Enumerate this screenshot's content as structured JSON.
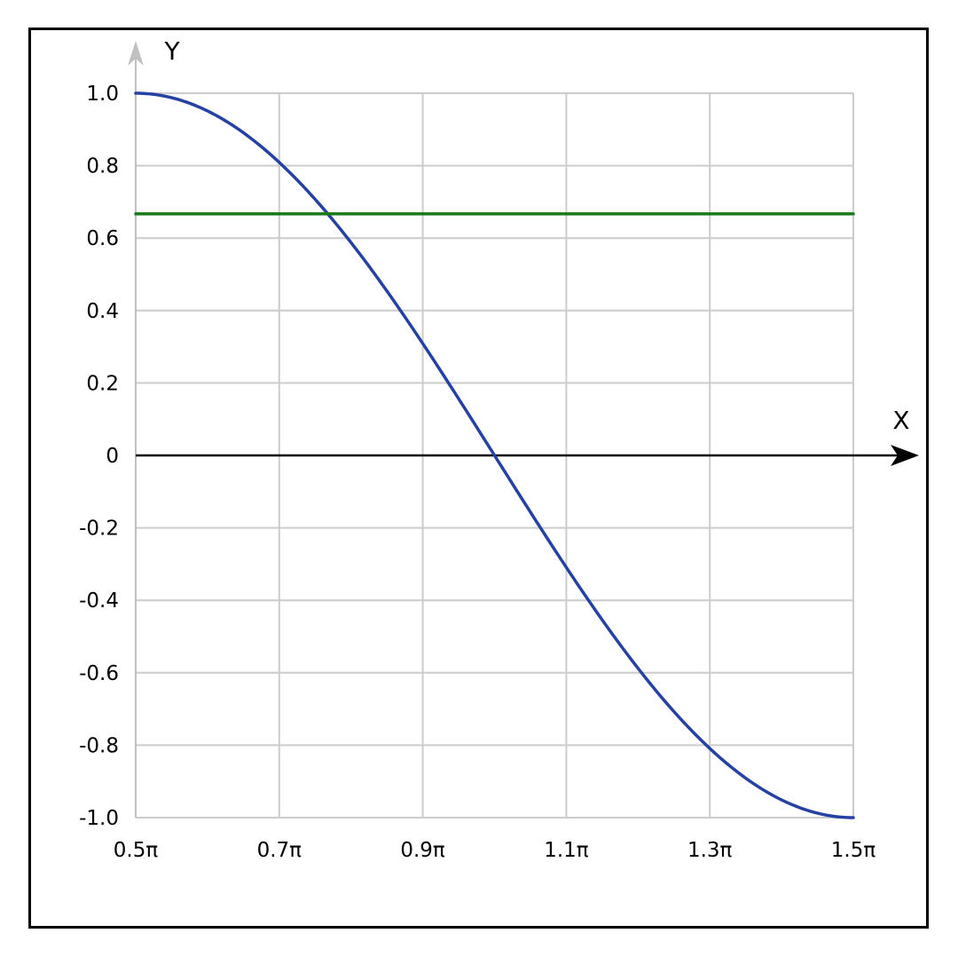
{
  "chart_data": {
    "type": "line",
    "function": "sin(x)",
    "xlabel": "X",
    "ylabel": "Y",
    "xlim": [
      1.5708,
      4.7124
    ],
    "ylim": [
      -1.0,
      1.0
    ],
    "grid": true,
    "x_ticks": [
      {
        "value": 1.5708,
        "label": "0.5π"
      },
      {
        "value": 2.1991,
        "label": "0.7π"
      },
      {
        "value": 2.8274,
        "label": "0.9π"
      },
      {
        "value": 3.4558,
        "label": "1.1π"
      },
      {
        "value": 4.0841,
        "label": "1.3π"
      },
      {
        "value": 4.7124,
        "label": "1.5π"
      }
    ],
    "y_ticks": [
      {
        "value": 1.0,
        "label": "1.0"
      },
      {
        "value": 0.8,
        "label": "0.8"
      },
      {
        "value": 0.6,
        "label": "0.6"
      },
      {
        "value": 0.4,
        "label": "0.4"
      },
      {
        "value": 0.2,
        "label": "0.2"
      },
      {
        "value": 0.0,
        "label": "0"
      },
      {
        "value": -0.2,
        "label": "-0.2"
      },
      {
        "value": -0.4,
        "label": "-0.4"
      },
      {
        "value": -0.6,
        "label": "-0.6"
      },
      {
        "value": -0.8,
        "label": "-0.8"
      },
      {
        "value": -1.0,
        "label": "-1.0"
      }
    ],
    "series": [
      {
        "color": "#2541a3",
        "x": [
          1.5708,
          1.7279,
          1.885,
          2.042,
          2.1991,
          2.3562,
          2.5133,
          2.6704,
          2.8274,
          2.9845,
          3.1416,
          3.2987,
          3.4558,
          3.6128,
          3.7699,
          3.927,
          4.0841,
          4.2412,
          4.3982,
          4.5553,
          4.7124
        ],
        "y": [
          1.0,
          0.988,
          0.951,
          0.891,
          0.809,
          0.707,
          0.588,
          0.454,
          0.309,
          0.156,
          0.0,
          -0.156,
          -0.309,
          -0.454,
          -0.588,
          -0.707,
          -0.809,
          -0.891,
          -0.951,
          -0.988,
          -1.0
        ]
      },
      {
        "color": "#1a7a1a",
        "x": [
          1.5708,
          4.7124
        ],
        "y": [
          0.667,
          0.667
        ]
      }
    ]
  },
  "colors": {
    "grid": "#cccccc",
    "y_axis_arrow": "#c0c0c0",
    "x_axis": "#000000"
  }
}
